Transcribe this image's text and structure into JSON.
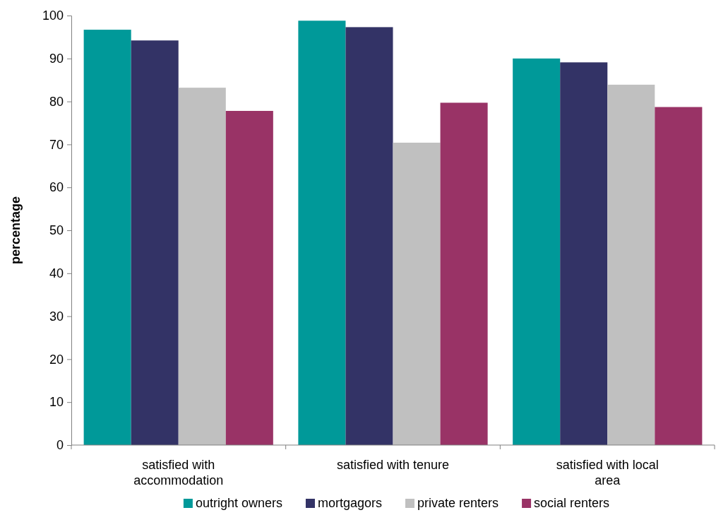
{
  "chart_data": {
    "type": "bar",
    "ylabel": "percentage",
    "categories": [
      "satisfied with accommodation",
      "satisfied with tenure",
      "satisfied with local area"
    ],
    "series": [
      {
        "name": "outright owners",
        "color": "#009999",
        "values": [
          96.7,
          98.8,
          90.0
        ]
      },
      {
        "name": "mortgagors",
        "color": "#333366",
        "values": [
          94.2,
          97.3,
          89.1
        ]
      },
      {
        "name": "private renters",
        "color": "#c0c0c0",
        "values": [
          83.2,
          70.4,
          83.9
        ]
      },
      {
        "name": "social renters",
        "color": "#993366",
        "values": [
          77.8,
          79.7,
          78.7
        ]
      }
    ],
    "ylim": [
      0,
      100
    ],
    "yticks": [
      0,
      10,
      20,
      30,
      40,
      50,
      60,
      70,
      80,
      90,
      100
    ],
    "grid": false,
    "legend": "bottom"
  }
}
